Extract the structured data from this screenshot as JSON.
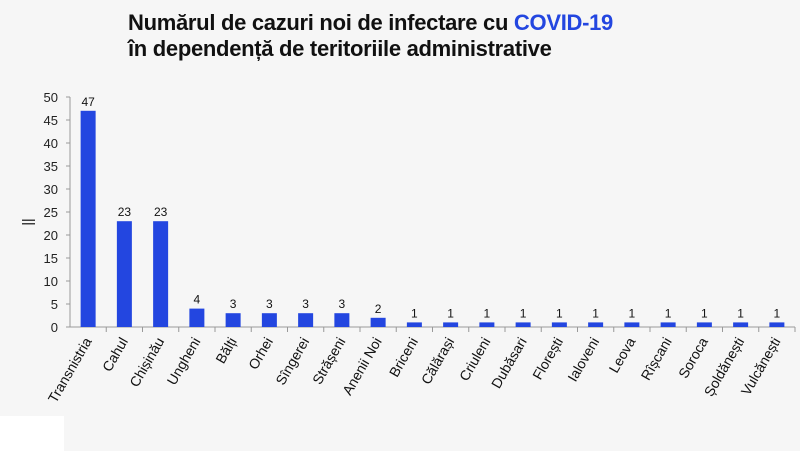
{
  "title": {
    "line1_prefix": "Numărul de cazuri noi de infectare cu ",
    "line1_highlight": "COVID-19",
    "line2": "în dependență de teritoriile administrative"
  },
  "y_axis_label": "||",
  "colors": {
    "bar": "#2346e0",
    "highlight": "#2346e0"
  },
  "chart_data": {
    "type": "bar",
    "categories": [
      "Transnistria",
      "Cahul",
      "Chișinău",
      "Ungheni",
      "Bălți",
      "Orhei",
      "Sîngerei",
      "Strășeni",
      "Anenii Noi",
      "Briceni",
      "Călărași",
      "Criuleni",
      "Dubăsari",
      "Florești",
      "Ialoveni",
      "Leova",
      "Rîșcani",
      "Soroca",
      "Șoldănești",
      "Vulcănești"
    ],
    "values": [
      47,
      23,
      23,
      4,
      3,
      3,
      3,
      3,
      2,
      1,
      1,
      1,
      1,
      1,
      1,
      1,
      1,
      1,
      1,
      1
    ],
    "ylim": [
      0,
      50
    ],
    "yticks": [
      0,
      5,
      10,
      15,
      20,
      25,
      30,
      35,
      40,
      45,
      50
    ],
    "grid": false,
    "data_labels": true
  }
}
